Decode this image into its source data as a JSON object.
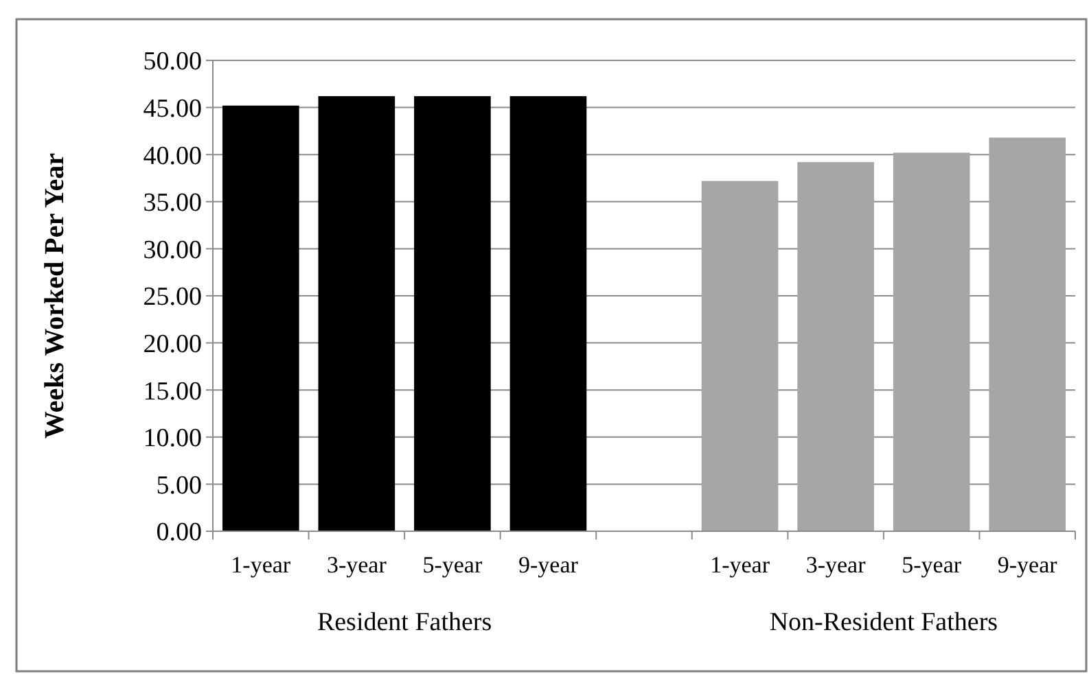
{
  "chart_data": {
    "type": "bar",
    "ylabel": "Weeks Worked Per Year",
    "categories": [
      "1-year",
      "3-year",
      "5-year",
      "9-year",
      null,
      "1-year",
      "3-year",
      "5-year",
      "9-year"
    ],
    "values": [
      45.2,
      46.2,
      46.2,
      46.2,
      null,
      37.2,
      39.2,
      40.2,
      41.8
    ],
    "colors": [
      "#000000",
      "#000000",
      "#000000",
      "#000000",
      null,
      "#a6a6a6",
      "#a6a6a6",
      "#a6a6a6",
      "#a6a6a6"
    ],
    "ylim": [
      0,
      50
    ],
    "yticks": [
      {
        "value": 0,
        "label": "0.00"
      },
      {
        "value": 5,
        "label": "5.00"
      },
      {
        "value": 10,
        "label": "10.00"
      },
      {
        "value": 15,
        "label": "15.00"
      },
      {
        "value": 20,
        "label": "20.00"
      },
      {
        "value": 25,
        "label": "25.00"
      },
      {
        "value": 30,
        "label": "30.00"
      },
      {
        "value": 35,
        "label": "35.00"
      },
      {
        "value": 40,
        "label": "40.00"
      },
      {
        "value": 45,
        "label": "45.00"
      },
      {
        "value": 50,
        "label": "50.00"
      }
    ],
    "grid": "y",
    "annotations": [
      "Resident Fathers",
      "Non-Resident Fathers"
    ]
  }
}
